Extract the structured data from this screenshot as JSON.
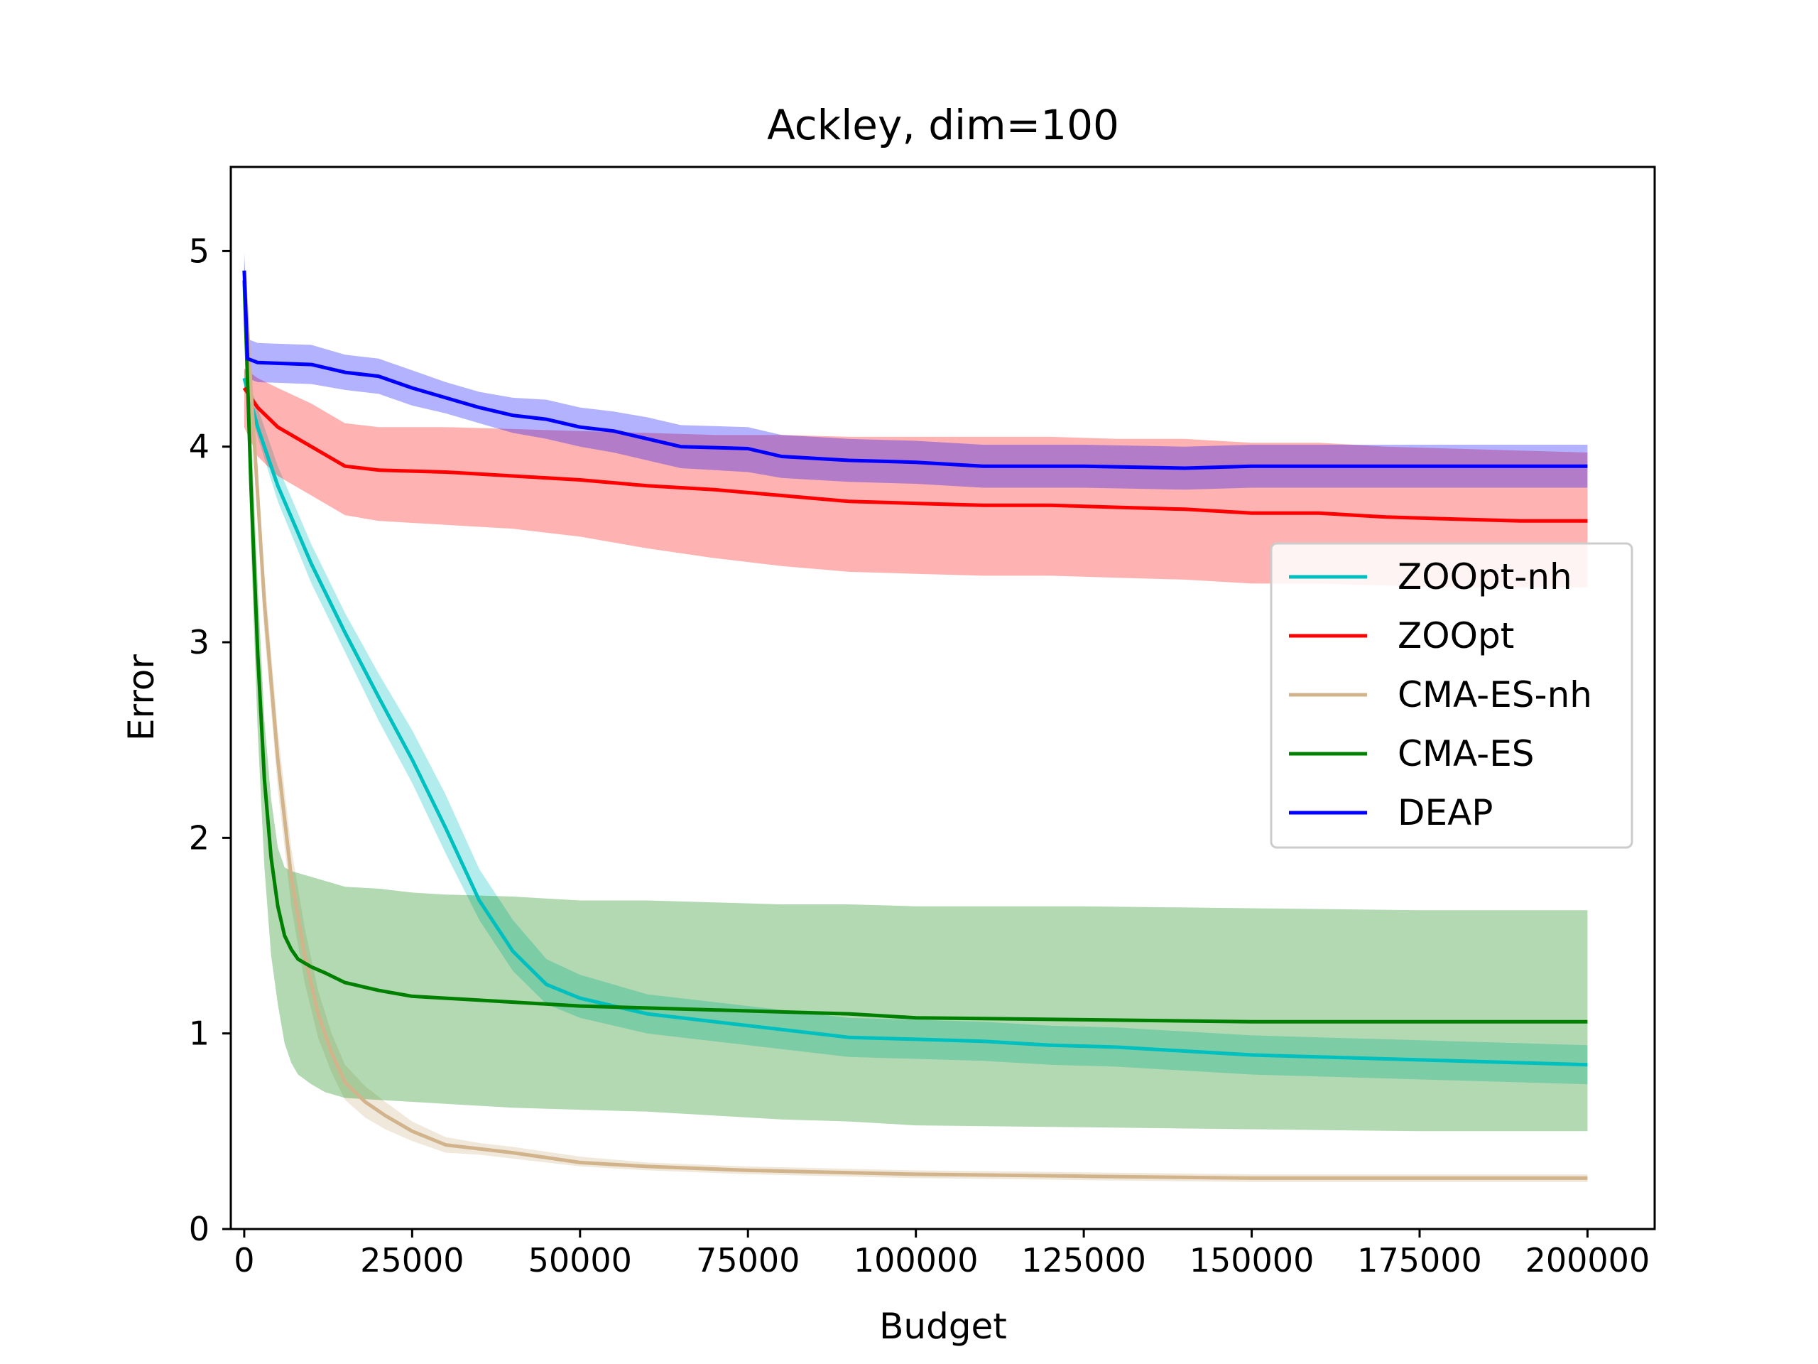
{
  "chart_data": {
    "type": "line",
    "title": "Ackley, dim=100",
    "xlabel": "Budget",
    "ylabel": "Error",
    "xlim": [
      -2000,
      210000
    ],
    "ylim": [
      0,
      5.43
    ],
    "xticks": [
      0,
      25000,
      50000,
      75000,
      100000,
      125000,
      150000,
      175000,
      200000
    ],
    "yticks": [
      0,
      1,
      2,
      3,
      4,
      5
    ],
    "grid": false,
    "legend_position": "center-right",
    "series": [
      {
        "name": "ZOOpt-nh",
        "color": "#00bfbf",
        "band_color": "#00bfbf",
        "x": [
          0,
          2000,
          5000,
          10000,
          15000,
          20000,
          25000,
          30000,
          35000,
          40000,
          45000,
          50000,
          60000,
          70000,
          80000,
          90000,
          100000,
          110000,
          120000,
          130000,
          140000,
          150000,
          160000,
          170000,
          180000,
          190000,
          200000
        ],
        "y": [
          4.35,
          4.1,
          3.8,
          3.4,
          3.05,
          2.72,
          2.4,
          2.05,
          1.68,
          1.42,
          1.25,
          1.18,
          1.1,
          1.06,
          1.02,
          0.98,
          0.97,
          0.96,
          0.94,
          0.93,
          0.91,
          0.89,
          0.88,
          0.87,
          0.86,
          0.85,
          0.84
        ],
        "lower": [
          4.3,
          4.05,
          3.72,
          3.3,
          2.95,
          2.6,
          2.28,
          1.92,
          1.58,
          1.32,
          1.15,
          1.08,
          1.0,
          0.96,
          0.92,
          0.88,
          0.87,
          0.86,
          0.84,
          0.83,
          0.81,
          0.79,
          0.78,
          0.77,
          0.76,
          0.75,
          0.74
        ],
        "upper": [
          4.4,
          4.2,
          3.9,
          3.5,
          3.15,
          2.84,
          2.55,
          2.22,
          1.84,
          1.58,
          1.38,
          1.3,
          1.2,
          1.16,
          1.12,
          1.08,
          1.07,
          1.06,
          1.04,
          1.03,
          1.01,
          0.99,
          0.98,
          0.97,
          0.96,
          0.95,
          0.94
        ]
      },
      {
        "name": "ZOOpt",
        "color": "#ff0000",
        "band_color": "#ff0000",
        "x": [
          0,
          2000,
          5000,
          10000,
          15000,
          20000,
          30000,
          40000,
          50000,
          60000,
          70000,
          80000,
          90000,
          100000,
          110000,
          120000,
          130000,
          140000,
          150000,
          160000,
          170000,
          180000,
          190000,
          200000
        ],
        "y": [
          4.3,
          4.2,
          4.1,
          4.0,
          3.9,
          3.88,
          3.87,
          3.85,
          3.83,
          3.8,
          3.78,
          3.75,
          3.72,
          3.71,
          3.7,
          3.7,
          3.69,
          3.68,
          3.66,
          3.66,
          3.64,
          3.63,
          3.62,
          3.62
        ],
        "lower": [
          4.1,
          3.95,
          3.85,
          3.75,
          3.65,
          3.62,
          3.6,
          3.58,
          3.54,
          3.48,
          3.43,
          3.39,
          3.36,
          3.35,
          3.34,
          3.34,
          3.33,
          3.32,
          3.3,
          3.3,
          3.29,
          3.28,
          3.28,
          3.28
        ],
        "upper": [
          4.4,
          4.35,
          4.3,
          4.22,
          4.12,
          4.1,
          4.1,
          4.09,
          4.08,
          4.07,
          4.06,
          4.06,
          4.05,
          4.05,
          4.05,
          4.05,
          4.04,
          4.04,
          4.02,
          4.02,
          4.0,
          3.99,
          3.98,
          3.97
        ]
      },
      {
        "name": "CMA-ES-nh",
        "color": "#d2b48c",
        "band_color": "#d2b48c",
        "x": [
          0,
          1000,
          3000,
          5000,
          7000,
          9000,
          11000,
          13000,
          15000,
          18000,
          21000,
          25000,
          30000,
          35000,
          40000,
          50000,
          60000,
          75000,
          100000,
          125000,
          150000,
          175000,
          200000
        ],
        "y": [
          4.9,
          4.3,
          3.2,
          2.4,
          1.8,
          1.4,
          1.1,
          0.9,
          0.75,
          0.65,
          0.58,
          0.5,
          0.43,
          0.41,
          0.39,
          0.34,
          0.32,
          0.3,
          0.28,
          0.27,
          0.26,
          0.26,
          0.26
        ],
        "lower": [
          4.85,
          4.2,
          3.05,
          2.25,
          1.65,
          1.26,
          0.98,
          0.8,
          0.66,
          0.57,
          0.51,
          0.45,
          0.39,
          0.38,
          0.36,
          0.32,
          0.3,
          0.28,
          0.26,
          0.25,
          0.24,
          0.24,
          0.24
        ],
        "upper": [
          4.95,
          4.4,
          3.35,
          2.55,
          1.95,
          1.54,
          1.22,
          1.0,
          0.84,
          0.73,
          0.65,
          0.55,
          0.47,
          0.44,
          0.42,
          0.37,
          0.34,
          0.32,
          0.3,
          0.29,
          0.28,
          0.28,
          0.28
        ]
      },
      {
        "name": "CMA-ES",
        "color": "#008000",
        "band_color": "#008000",
        "x": [
          0,
          1000,
          2000,
          3000,
          4000,
          5000,
          6000,
          7000,
          8000,
          10000,
          12000,
          15000,
          20000,
          25000,
          30000,
          40000,
          50000,
          60000,
          70000,
          80000,
          90000,
          100000,
          125000,
          150000,
          175000,
          200000
        ],
        "y": [
          4.85,
          3.8,
          2.95,
          2.3,
          1.9,
          1.65,
          1.5,
          1.43,
          1.38,
          1.34,
          1.31,
          1.26,
          1.22,
          1.19,
          1.18,
          1.16,
          1.14,
          1.13,
          1.12,
          1.11,
          1.1,
          1.08,
          1.07,
          1.06,
          1.06,
          1.06
        ],
        "lower": [
          4.7,
          3.5,
          2.55,
          1.85,
          1.4,
          1.15,
          0.95,
          0.85,
          0.79,
          0.74,
          0.7,
          0.67,
          0.66,
          0.65,
          0.64,
          0.62,
          0.61,
          0.6,
          0.58,
          0.56,
          0.55,
          0.53,
          0.52,
          0.51,
          0.5,
          0.5
        ],
        "upper": [
          4.95,
          4.1,
          3.3,
          2.6,
          2.2,
          1.95,
          1.85,
          1.83,
          1.82,
          1.8,
          1.78,
          1.75,
          1.74,
          1.72,
          1.71,
          1.7,
          1.68,
          1.68,
          1.67,
          1.66,
          1.66,
          1.65,
          1.65,
          1.64,
          1.63,
          1.63
        ]
      },
      {
        "name": "DEAP",
        "color": "#0000ff",
        "band_color": "#0000ff",
        "x": [
          0,
          500,
          2000,
          10000,
          15000,
          20000,
          25000,
          30000,
          35000,
          40000,
          45000,
          50000,
          55000,
          60000,
          65000,
          75000,
          80000,
          90000,
          100000,
          110000,
          125000,
          140000,
          150000,
          175000,
          200000
        ],
        "y": [
          4.9,
          4.45,
          4.43,
          4.42,
          4.38,
          4.36,
          4.3,
          4.25,
          4.2,
          4.16,
          4.14,
          4.1,
          4.08,
          4.04,
          4.0,
          3.99,
          3.95,
          3.93,
          3.92,
          3.9,
          3.9,
          3.89,
          3.9,
          3.9,
          3.9
        ],
        "lower": [
          4.8,
          4.35,
          4.33,
          4.32,
          4.29,
          4.27,
          4.21,
          4.17,
          4.12,
          4.07,
          4.04,
          4.0,
          3.97,
          3.93,
          3.89,
          3.87,
          3.84,
          3.82,
          3.81,
          3.79,
          3.79,
          3.78,
          3.79,
          3.79,
          3.79
        ],
        "upper": [
          5.0,
          4.55,
          4.53,
          4.52,
          4.47,
          4.45,
          4.39,
          4.33,
          4.28,
          4.25,
          4.24,
          4.2,
          4.18,
          4.15,
          4.11,
          4.1,
          4.06,
          4.04,
          4.03,
          4.01,
          4.01,
          4.0,
          4.01,
          4.01,
          4.01
        ]
      }
    ]
  }
}
